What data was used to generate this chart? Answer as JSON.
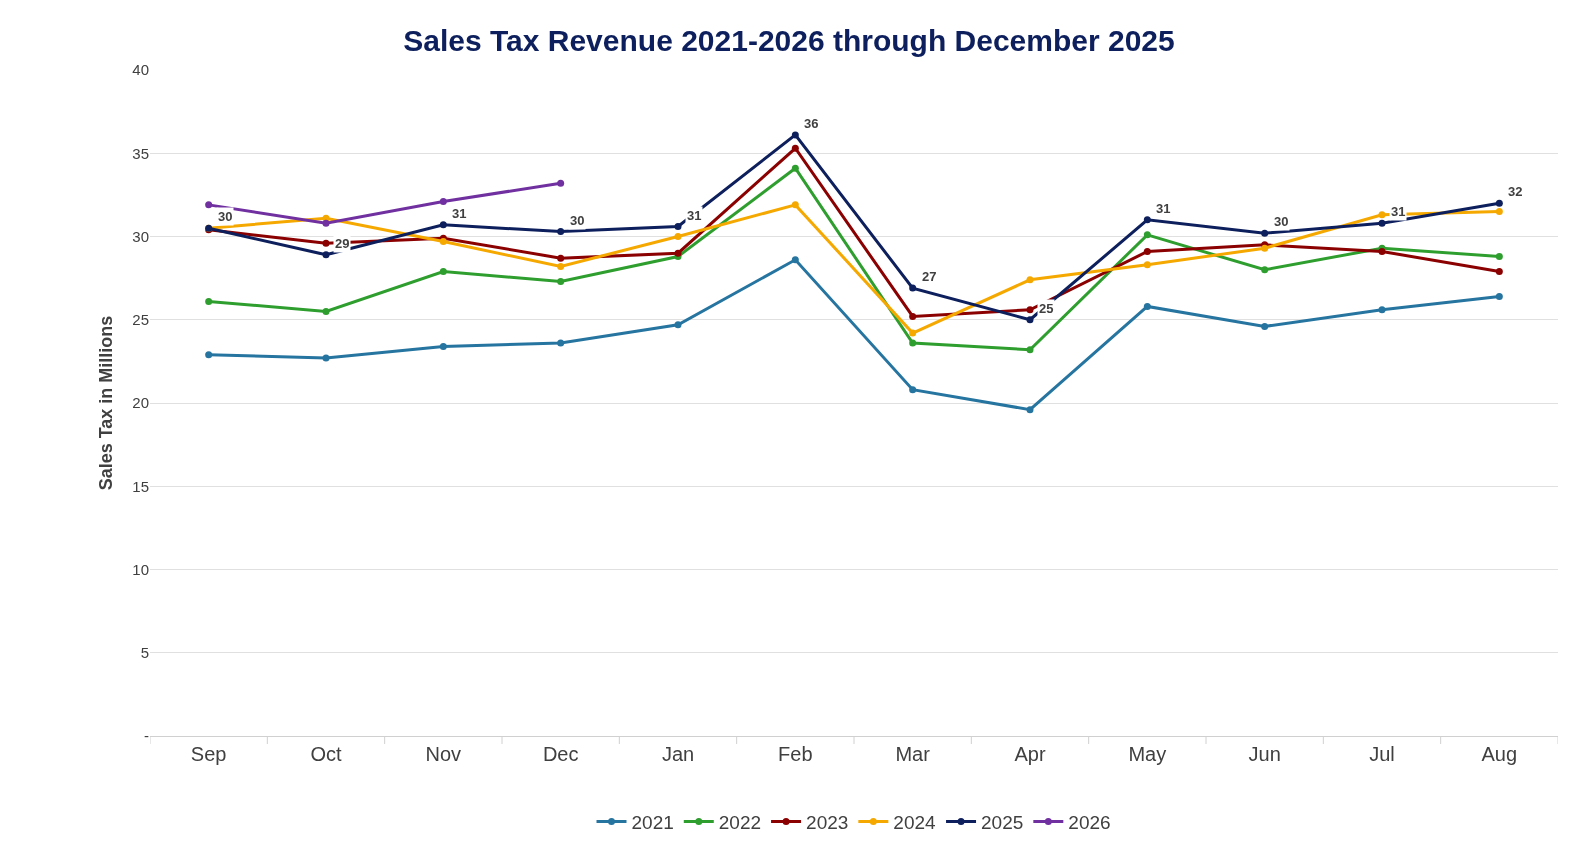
{
  "chart_data": {
    "type": "line",
    "title": "Sales Tax Revenue 2021-2026 through December 2025",
    "ylabel": "Sales Tax in Millions",
    "categories": [
      "Sep",
      "Oct",
      "Nov",
      "Dec",
      "Jan",
      "Feb",
      "Mar",
      "Apr",
      "May",
      "Jun",
      "Jul",
      "Aug"
    ],
    "series": [
      {
        "name": "2021",
        "color": "#2674a0",
        "values": [
          22.9,
          22.7,
          23.4,
          23.6,
          24.7,
          28.6,
          20.8,
          19.6,
          25.8,
          24.6,
          25.6,
          26.4
        ]
      },
      {
        "name": "2022",
        "color": "#2e9e2e",
        "values": [
          26.1,
          25.5,
          27.9,
          27.3,
          28.8,
          34.1,
          23.6,
          23.2,
          30.1,
          28.0,
          29.3,
          28.8
        ]
      },
      {
        "name": "2023",
        "color": "#8b0000",
        "values": [
          30.4,
          29.6,
          29.9,
          28.7,
          29.0,
          35.3,
          25.2,
          25.6,
          29.1,
          29.5,
          29.1,
          27.9
        ]
      },
      {
        "name": "2024",
        "color": "#f5a800",
        "values": [
          30.5,
          31.1,
          29.7,
          28.2,
          30.0,
          31.9,
          24.2,
          27.4,
          28.3,
          29.3,
          31.3,
          31.5
        ]
      },
      {
        "name": "2025",
        "color": "#0d1f5c",
        "values": [
          30.5,
          28.9,
          30.7,
          30.3,
          30.6,
          36.1,
          26.9,
          25.0,
          31.0,
          30.2,
          30.8,
          32.0
        ],
        "value_labels": [
          "30",
          "29",
          "31",
          "30",
          "31",
          "36",
          "27",
          "25",
          "31",
          "30",
          "31",
          "32"
        ]
      },
      {
        "name": "2026",
        "color": "#7030a0",
        "values": [
          31.9,
          30.8,
          32.1,
          33.2,
          null,
          null,
          null,
          null,
          null,
          null,
          null,
          null
        ]
      }
    ],
    "ylim": [
      0,
      40
    ],
    "yticks": [
      {
        "value": 0,
        "label": "-"
      },
      5,
      10,
      15,
      20,
      25,
      30,
      35,
      40
    ],
    "grid": "y",
    "legend": "bottom",
    "marker": "circle",
    "line_style": "solid"
  }
}
